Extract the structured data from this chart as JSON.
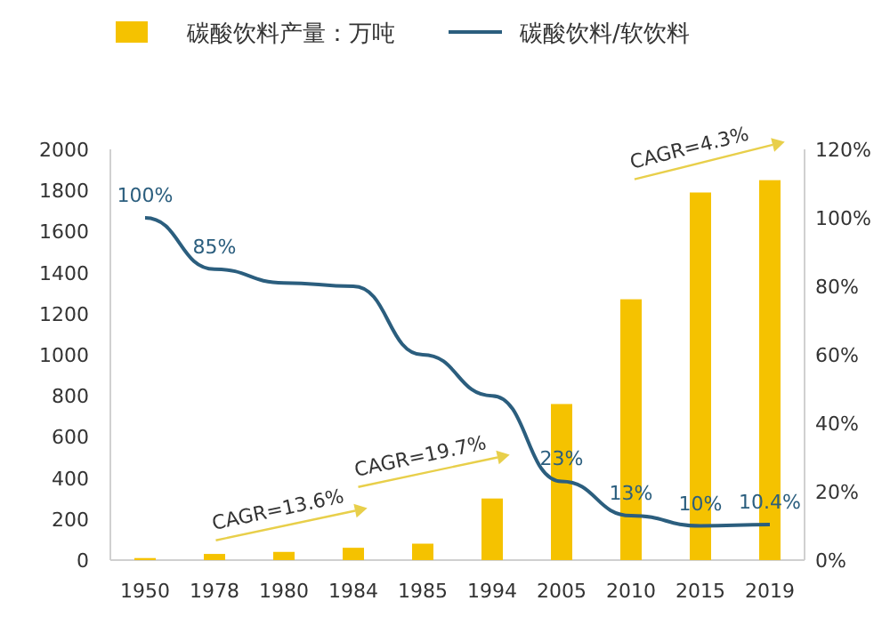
{
  "chart_data": {
    "type": "bar",
    "categories": [
      "1950",
      "1978",
      "1980",
      "1984",
      "1985",
      "1994",
      "2005",
      "2010",
      "2015",
      "2019"
    ],
    "series": [
      {
        "name": "碳酸饮料产量：万吨",
        "color": "#f5c200",
        "values": [
          10,
          30,
          40,
          60,
          80,
          300,
          760,
          1270,
          1790,
          1850
        ]
      },
      {
        "name": "碳酸饮料/软饮料",
        "type": "line",
        "axis": "y2",
        "color": "#2b5e7e",
        "values": [
          100,
          85,
          81,
          80,
          60,
          48,
          23,
          13,
          10,
          10.4
        ],
        "value_labels": [
          "100%",
          "85%",
          null,
          null,
          null,
          null,
          "23%",
          "13%",
          "10%",
          "10.4%"
        ]
      }
    ],
    "ylim": [
      0,
      2000
    ],
    "yticks": [
      0,
      200,
      400,
      600,
      800,
      1000,
      1200,
      1400,
      1600,
      1800,
      2000
    ],
    "y2lim": [
      0,
      120
    ],
    "y2ticks": [
      {
        "value": 0,
        "label": "0%"
      },
      {
        "value": 20,
        "label": "20%"
      },
      {
        "value": 40,
        "label": "40%"
      },
      {
        "value": 60,
        "label": "60%"
      },
      {
        "value": 80,
        "label": "80%"
      },
      {
        "value": 100,
        "label": "100%"
      },
      {
        "value": 120,
        "label": "120%"
      }
    ],
    "legend": "top",
    "annotations": [
      "CAGR=13.6%",
      "CAGR=19.7%",
      "CAGR=4.3%"
    ]
  }
}
